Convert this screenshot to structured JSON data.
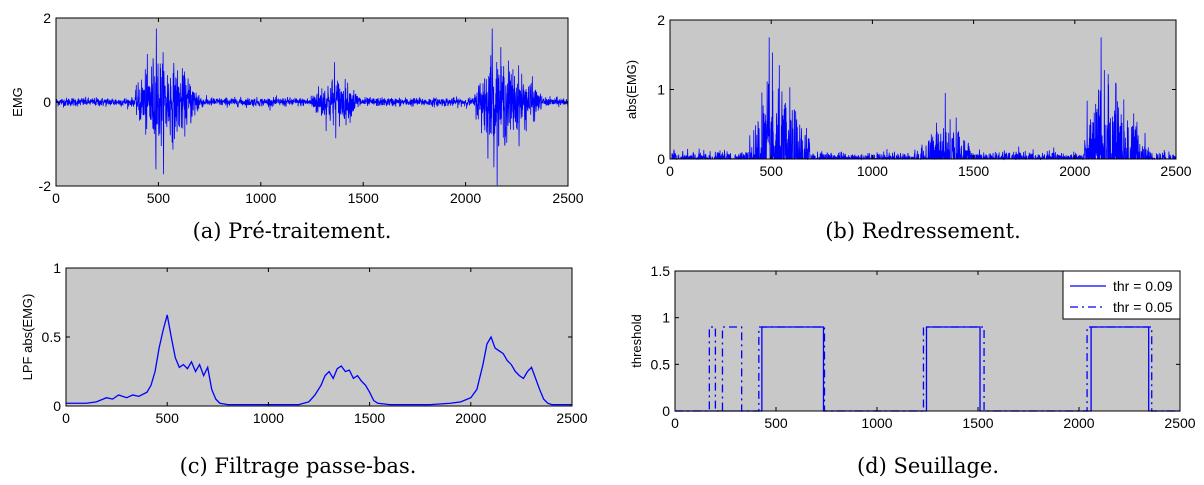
{
  "chart_data": [
    {
      "id": "a",
      "type": "line",
      "caption": "(a) Pré-traitement.",
      "ylabel": "EMG",
      "xlim": [
        0,
        2500
      ],
      "ylim": [
        -2,
        2
      ],
      "xticks": [
        0,
        500,
        1000,
        1500,
        2000,
        2500
      ],
      "yticks": [
        -2,
        0,
        2
      ],
      "grid": false,
      "line_color": "#0000ff",
      "bursts": [
        {
          "x_start": 380,
          "x_end": 720,
          "peak_x": 490,
          "max_abs": 1.75
        },
        {
          "x_start": 1230,
          "x_end": 1500,
          "peak_x": 1360,
          "max_abs": 0.95
        },
        {
          "x_start": 2040,
          "x_end": 2380,
          "peak_x": 2130,
          "max_abs": 1.75
        }
      ],
      "baseline_noise": 0.05
    },
    {
      "id": "b",
      "type": "line",
      "caption": "(b) Redressement.",
      "ylabel": "abs(EMG)",
      "xlim": [
        0,
        2500
      ],
      "ylim": [
        0,
        2
      ],
      "xticks": [
        0,
        500,
        1000,
        1500,
        2000,
        2500
      ],
      "yticks": [
        0,
        1,
        2
      ],
      "grid": false,
      "line_color": "#0000ff",
      "bursts": [
        {
          "x_start": 380,
          "x_end": 720,
          "peak_x": 490,
          "max_abs": 1.75
        },
        {
          "x_start": 1230,
          "x_end": 1500,
          "peak_x": 1360,
          "max_abs": 0.95
        },
        {
          "x_start": 2040,
          "x_end": 2380,
          "peak_x": 2130,
          "max_abs": 1.75
        }
      ],
      "baseline_noise": 0.05
    },
    {
      "id": "c",
      "type": "line",
      "caption": "(c) Filtrage passe-bas.",
      "ylabel": "LPF abs(EMG)",
      "xlim": [
        0,
        2500
      ],
      "ylim": [
        0,
        1
      ],
      "xticks": [
        0,
        500,
        1000,
        1500,
        2000,
        2500
      ],
      "yticks": [
        0,
        0.5,
        1
      ],
      "grid": false,
      "line_color": "#0000ff",
      "x": [
        0,
        50,
        100,
        150,
        200,
        230,
        260,
        300,
        330,
        360,
        400,
        420,
        440,
        460,
        480,
        500,
        520,
        540,
        560,
        580,
        600,
        620,
        640,
        660,
        680,
        700,
        720,
        740,
        760,
        800,
        900,
        1000,
        1100,
        1150,
        1200,
        1230,
        1260,
        1280,
        1300,
        1320,
        1340,
        1360,
        1380,
        1400,
        1420,
        1440,
        1460,
        1480,
        1500,
        1520,
        1540,
        1600,
        1700,
        1800,
        1900,
        1950,
        2000,
        2030,
        2060,
        2080,
        2100,
        2120,
        2140,
        2160,
        2180,
        2200,
        2220,
        2240,
        2260,
        2280,
        2300,
        2320,
        2340,
        2360,
        2380,
        2400,
        2450,
        2500
      ],
      "y": [
        0.02,
        0.02,
        0.02,
        0.03,
        0.06,
        0.05,
        0.08,
        0.06,
        0.08,
        0.07,
        0.1,
        0.15,
        0.25,
        0.42,
        0.55,
        0.66,
        0.5,
        0.35,
        0.28,
        0.3,
        0.27,
        0.32,
        0.25,
        0.3,
        0.22,
        0.28,
        0.12,
        0.05,
        0.02,
        0.01,
        0.01,
        0.01,
        0.01,
        0.01,
        0.03,
        0.08,
        0.15,
        0.22,
        0.25,
        0.2,
        0.27,
        0.29,
        0.25,
        0.26,
        0.2,
        0.22,
        0.18,
        0.15,
        0.1,
        0.04,
        0.02,
        0.01,
        0.01,
        0.01,
        0.02,
        0.03,
        0.06,
        0.12,
        0.3,
        0.45,
        0.5,
        0.42,
        0.4,
        0.38,
        0.33,
        0.3,
        0.25,
        0.22,
        0.2,
        0.25,
        0.28,
        0.2,
        0.12,
        0.05,
        0.02,
        0.01,
        0.01,
        0.01
      ]
    },
    {
      "id": "d",
      "type": "line",
      "caption": "(d) Seuillage.",
      "ylabel": "threshold",
      "xlim": [
        0,
        2500
      ],
      "ylim": [
        0,
        1.5
      ],
      "xticks": [
        0,
        500,
        1000,
        1500,
        2000,
        2500
      ],
      "yticks": [
        0,
        0.5,
        1,
        1.5
      ],
      "grid": false,
      "legend_position": "top-right",
      "series": [
        {
          "name": "thr = 0.09",
          "style": "solid",
          "level": 0.9,
          "intervals": [
            [
              430,
              735
            ],
            [
              1245,
              1510
            ],
            [
              2060,
              2345
            ]
          ]
        },
        {
          "name": "thr = 0.05",
          "style": "dashdot",
          "level": 0.9,
          "intervals": [
            [
              170,
              200
            ],
            [
              235,
              330
            ],
            [
              415,
              740
            ],
            [
              1230,
              1530
            ],
            [
              2040,
              2360
            ]
          ]
        }
      ]
    }
  ]
}
